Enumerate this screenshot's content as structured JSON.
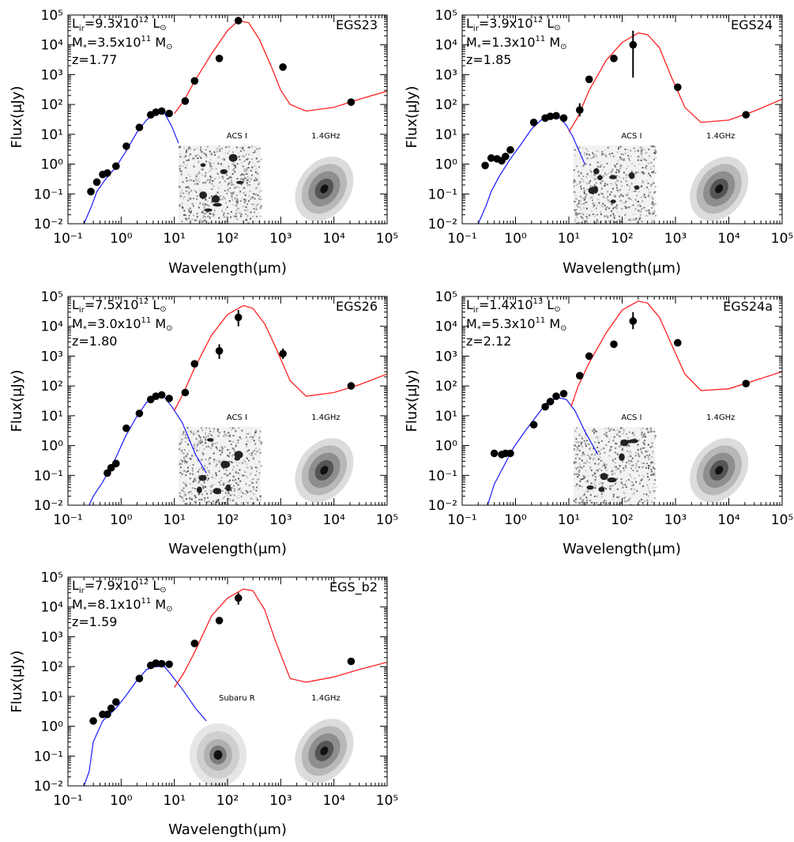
{
  "figure": {
    "x_axis_label": "Wavelength(μm)",
    "y_axis_label": "Flux(μJy)",
    "x_tick_labels": [
      "10⁻¹",
      "10⁰",
      "10¹",
      "10²",
      "10³",
      "10⁴",
      "10⁵"
    ],
    "y_tick_labels": [
      "10⁻²",
      "10⁻¹",
      "10⁰",
      "10¹",
      "10²",
      "10³",
      "10⁴",
      "10⁵"
    ],
    "colors": {
      "stellar_model": "#1a1aff",
      "dust_model": "#ff2020",
      "data_points": "#000000"
    }
  },
  "chart_data": [
    {
      "type": "scatter",
      "name": "EGS23",
      "info": [
        "L_ir=9.3x10^12 L⊙",
        "M*=3.5x10^11 M⊙",
        "z=1.77"
      ],
      "lir_mantissa": "9.3",
      "lir_exp": "12",
      "mstar_mantissa": "3.5",
      "mstar_exp": "11",
      "redshift": "z=1.77",
      "inset_labels": [
        "ACS I",
        "1.4GHz"
      ],
      "x_scale": "log",
      "y_scale": "log",
      "xlim": [
        0.1,
        100000
      ],
      "ylim": [
        0.01,
        100000
      ],
      "points": [
        [
          0.27,
          0.12
        ],
        [
          0.35,
          0.25
        ],
        [
          0.45,
          0.45
        ],
        [
          0.55,
          0.5
        ],
        [
          0.8,
          0.85
        ],
        [
          1.25,
          4.0
        ],
        [
          2.2,
          17
        ],
        [
          3.6,
          45
        ],
        [
          4.5,
          55
        ],
        [
          5.8,
          60
        ],
        [
          8.0,
          50
        ],
        [
          16,
          130
        ],
        [
          24,
          620
        ],
        [
          70,
          3500
        ],
        [
          160,
          65000
        ],
        [
          1100,
          1800
        ],
        [
          21000,
          120
        ]
      ],
      "error_bars": [],
      "stellar_model": [
        [
          0.2,
          0.01
        ],
        [
          0.28,
          0.04
        ],
        [
          0.35,
          0.12
        ],
        [
          0.5,
          0.3
        ],
        [
          0.8,
          0.8
        ],
        [
          1.2,
          2.5
        ],
        [
          2.0,
          12
        ],
        [
          3.0,
          30
        ],
        [
          4.5,
          55
        ],
        [
          6.5,
          52
        ],
        [
          9.0,
          18
        ],
        [
          12,
          5
        ]
      ],
      "dust_model": [
        [
          10,
          50
        ],
        [
          15,
          130
        ],
        [
          24,
          600
        ],
        [
          50,
          5000
        ],
        [
          100,
          30000
        ],
        [
          160,
          65000
        ],
        [
          250,
          55000
        ],
        [
          400,
          15000
        ],
        [
          700,
          1500
        ],
        [
          1000,
          300
        ],
        [
          1500,
          100
        ],
        [
          3000,
          60
        ],
        [
          10000,
          80
        ],
        [
          30000,
          150
        ],
        [
          100000,
          280
        ]
      ]
    },
    {
      "type": "scatter",
      "name": "EGS24",
      "info": [
        "L_ir=3.9x10^12 L⊙",
        "M*=1.3x10^11 M⊙",
        "z=1.85"
      ],
      "lir_mantissa": "3.9",
      "lir_exp": "12",
      "mstar_mantissa": "1.3",
      "mstar_exp": "11",
      "redshift": "z=1.85",
      "inset_labels": [
        "ACS I",
        "1.4GHz"
      ],
      "x_scale": "log",
      "y_scale": "log",
      "xlim": [
        0.1,
        100000
      ],
      "ylim": [
        0.01,
        100000
      ],
      "points": [
        [
          0.27,
          0.9
        ],
        [
          0.35,
          1.6
        ],
        [
          0.45,
          1.5
        ],
        [
          0.55,
          1.3
        ],
        [
          0.65,
          1.8
        ],
        [
          0.8,
          3.0
        ],
        [
          2.2,
          25
        ],
        [
          3.6,
          35
        ],
        [
          4.5,
          40
        ],
        [
          5.8,
          42
        ],
        [
          8.0,
          35
        ],
        [
          16,
          65
        ],
        [
          24,
          700
        ],
        [
          70,
          3500
        ],
        [
          160,
          10000
        ],
        [
          1100,
          380
        ],
        [
          21000,
          45
        ]
      ],
      "error_bars": [
        [
          16,
          40,
          110
        ],
        [
          160,
          800,
          30000
        ]
      ],
      "stellar_model": [
        [
          0.2,
          0.01
        ],
        [
          0.28,
          0.04
        ],
        [
          0.35,
          0.12
        ],
        [
          0.5,
          0.4
        ],
        [
          0.8,
          1.5
        ],
        [
          1.2,
          4
        ],
        [
          2.0,
          15
        ],
        [
          3.0,
          30
        ],
        [
          4.5,
          40
        ],
        [
          6.5,
          38
        ],
        [
          9.0,
          20
        ],
        [
          12,
          8
        ],
        [
          20,
          1
        ]
      ],
      "dust_model": [
        [
          10,
          12
        ],
        [
          15,
          40
        ],
        [
          24,
          300
        ],
        [
          50,
          3000
        ],
        [
          100,
          12000
        ],
        [
          200,
          25000
        ],
        [
          300,
          22000
        ],
        [
          500,
          8000
        ],
        [
          800,
          1000
        ],
        [
          1500,
          80
        ],
        [
          3000,
          25
        ],
        [
          10000,
          30
        ],
        [
          30000,
          60
        ],
        [
          100000,
          150
        ]
      ]
    },
    {
      "type": "scatter",
      "name": "EGS26",
      "info": [
        "L_ir=7.5x10^12 L⊙",
        "M*=3.0x10^11 M⊙",
        "z=1.80"
      ],
      "lir_mantissa": "7.5",
      "lir_exp": "12",
      "mstar_mantissa": "3.0",
      "mstar_exp": "11",
      "redshift": "z=1.80",
      "inset_labels": [
        "ACS I",
        "1.4GHz"
      ],
      "x_scale": "log",
      "y_scale": "log",
      "xlim": [
        0.1,
        100000
      ],
      "ylim": [
        0.01,
        100000
      ],
      "points": [
        [
          0.55,
          0.12
        ],
        [
          0.65,
          0.18
        ],
        [
          0.8,
          0.25
        ],
        [
          1.25,
          3.8
        ],
        [
          2.2,
          12
        ],
        [
          3.6,
          35
        ],
        [
          4.5,
          45
        ],
        [
          5.8,
          50
        ],
        [
          8.0,
          38
        ],
        [
          16,
          60
        ],
        [
          24,
          550
        ],
        [
          70,
          1500
        ],
        [
          160,
          20000
        ],
        [
          1100,
          1200
        ],
        [
          21000,
          100
        ]
      ],
      "error_bars": [
        [
          70,
          800,
          2500
        ],
        [
          160,
          10000,
          35000
        ],
        [
          1100,
          800,
          1800
        ]
      ],
      "stellar_model": [
        [
          0.25,
          0.01
        ],
        [
          0.3,
          0.02
        ],
        [
          0.45,
          0.06
        ],
        [
          0.8,
          0.4
        ],
        [
          1.2,
          2
        ],
        [
          2.0,
          10
        ],
        [
          3.0,
          28
        ],
        [
          4.5,
          45
        ],
        [
          6.5,
          42
        ],
        [
          9.0,
          20
        ],
        [
          14,
          6
        ],
        [
          25,
          0.5
        ],
        [
          40,
          0.12
        ]
      ],
      "dust_model": [
        [
          10,
          15
        ],
        [
          15,
          60
        ],
        [
          24,
          400
        ],
        [
          50,
          5000
        ],
        [
          100,
          25000
        ],
        [
          200,
          50000
        ],
        [
          300,
          40000
        ],
        [
          500,
          12000
        ],
        [
          800,
          2000
        ],
        [
          1500,
          150
        ],
        [
          3000,
          45
        ],
        [
          10000,
          60
        ],
        [
          30000,
          110
        ],
        [
          100000,
          250
        ]
      ]
    },
    {
      "type": "scatter",
      "name": "EGS24a",
      "info": [
        "L_ir=1.4x10^13 L⊙",
        "M*=5.3x10^11 M⊙",
        "z=2.12"
      ],
      "lir_mantissa": "1.4",
      "lir_exp": "13",
      "mstar_mantissa": "5.3",
      "mstar_exp": "11",
      "redshift": "z=2.12",
      "inset_labels": [
        "ACS I",
        "1.4GHz"
      ],
      "x_scale": "log",
      "y_scale": "log",
      "xlim": [
        0.1,
        100000
      ],
      "ylim": [
        0.01,
        100000
      ],
      "points": [
        [
          0.4,
          0.55
        ],
        [
          0.55,
          0.5
        ],
        [
          0.65,
          0.55
        ],
        [
          0.8,
          0.55
        ],
        [
          2.2,
          5
        ],
        [
          3.6,
          20
        ],
        [
          4.5,
          30
        ],
        [
          5.8,
          45
        ],
        [
          8.0,
          55
        ],
        [
          16,
          220
        ],
        [
          24,
          1000
        ],
        [
          70,
          2500
        ],
        [
          160,
          15000
        ],
        [
          1100,
          2800
        ],
        [
          21000,
          120
        ]
      ],
      "error_bars": [
        [
          160,
          8000,
          30000
        ]
      ],
      "stellar_model": [
        [
          0.3,
          0.01
        ],
        [
          0.4,
          0.05
        ],
        [
          0.6,
          0.2
        ],
        [
          0.9,
          0.8
        ],
        [
          1.5,
          3
        ],
        [
          2.5,
          10
        ],
        [
          4.0,
          30
        ],
        [
          6.5,
          40
        ],
        [
          9.0,
          35
        ],
        [
          13,
          15
        ],
        [
          20,
          3
        ],
        [
          35,
          0.5
        ]
      ],
      "dust_model": [
        [
          11,
          20
        ],
        [
          15,
          100
        ],
        [
          24,
          600
        ],
        [
          50,
          6000
        ],
        [
          100,
          35000
        ],
        [
          200,
          70000
        ],
        [
          300,
          60000
        ],
        [
          500,
          20000
        ],
        [
          800,
          3000
        ],
        [
          1500,
          250
        ],
        [
          3000,
          70
        ],
        [
          10000,
          80
        ],
        [
          30000,
          150
        ],
        [
          100000,
          300
        ]
      ]
    },
    {
      "type": "scatter",
      "name": "EGS_b2",
      "info": [
        "L_ir=7.9x10^12 L⊙",
        "M*=8.1x10^11 M⊙",
        "z=1.59"
      ],
      "lir_mantissa": "7.9",
      "lir_exp": "12",
      "mstar_mantissa": "8.1",
      "mstar_exp": "11",
      "redshift": "z=1.59",
      "inset_labels": [
        "Subaru R",
        "1.4GHz"
      ],
      "x_scale": "log",
      "y_scale": "log",
      "xlim": [
        0.1,
        100000
      ],
      "ylim": [
        0.01,
        100000
      ],
      "points": [
        [
          0.3,
          1.5
        ],
        [
          0.45,
          2.5
        ],
        [
          0.55,
          2.5
        ],
        [
          0.65,
          4
        ],
        [
          0.8,
          6.5
        ],
        [
          2.2,
          40
        ],
        [
          3.6,
          110
        ],
        [
          4.5,
          130
        ],
        [
          5.8,
          125
        ],
        [
          8.0,
          120
        ],
        [
          24,
          600
        ],
        [
          70,
          3500
        ],
        [
          160,
          20000
        ],
        [
          21000,
          150
        ]
      ],
      "error_bars": [
        [
          160,
          12000,
          30000
        ]
      ],
      "stellar_model": [
        [
          0.2,
          0.01
        ],
        [
          0.25,
          0.03
        ],
        [
          0.3,
          0.3
        ],
        [
          0.45,
          1.5
        ],
        [
          0.8,
          4
        ],
        [
          1.2,
          10
        ],
        [
          2.0,
          35
        ],
        [
          3.0,
          80
        ],
        [
          4.5,
          100
        ],
        [
          6.5,
          100
        ],
        [
          9.0,
          50
        ],
        [
          15,
          15
        ],
        [
          25,
          4
        ],
        [
          40,
          1.5
        ]
      ],
      "dust_model": [
        [
          10,
          20
        ],
        [
          15,
          60
        ],
        [
          24,
          300
        ],
        [
          50,
          5000
        ],
        [
          100,
          20000
        ],
        [
          200,
          40000
        ],
        [
          300,
          35000
        ],
        [
          500,
          8000
        ],
        [
          800,
          700
        ],
        [
          1500,
          40
        ],
        [
          3000,
          30
        ],
        [
          10000,
          45
        ],
        [
          30000,
          80
        ],
        [
          100000,
          140
        ]
      ]
    }
  ]
}
